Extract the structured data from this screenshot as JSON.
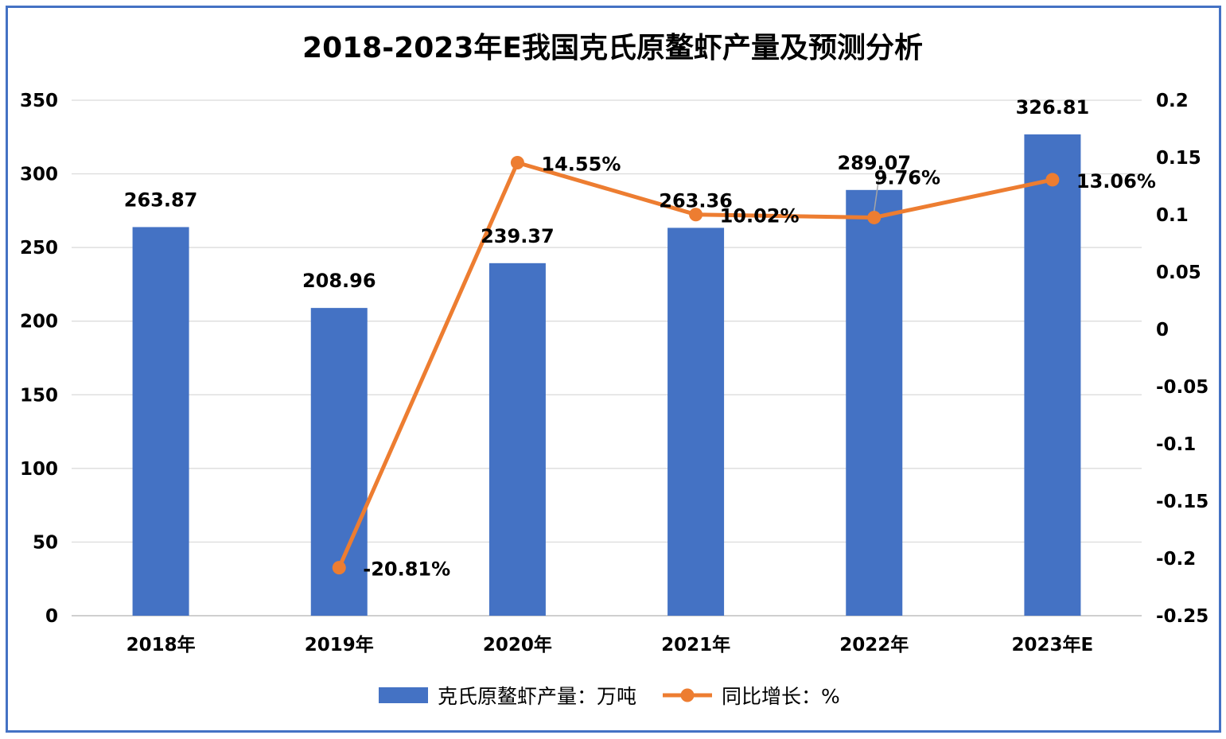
{
  "chart_data": {
    "type": "bar+line",
    "title": "2018-2023年E我国克氏原鳌虾产量及预测分析",
    "categories": [
      "2018年",
      "2019年",
      "2020年",
      "2021年",
      "2022年",
      "2023年E"
    ],
    "series": [
      {
        "name": "克氏原鳌虾产量：万吨",
        "type": "bar",
        "axis": "left",
        "color": "#4472c4",
        "values": [
          263.87,
          208.96,
          239.37,
          263.36,
          289.07,
          326.81
        ],
        "labels": [
          "263.87",
          "208.96",
          "239.37",
          "263.36",
          "289.07",
          "326.81"
        ]
      },
      {
        "name": "同比增长：%",
        "type": "line",
        "axis": "right",
        "color": "#ed7d31",
        "values": [
          null,
          -0.2081,
          0.1455,
          0.1002,
          0.0976,
          0.1306
        ],
        "labels": [
          null,
          "-20.81%",
          "14.55%",
          "10.02%",
          "9.76%",
          "13.06%"
        ]
      }
    ],
    "y_left": {
      "ylim": [
        0,
        350
      ],
      "ticks": [
        "0",
        "50",
        "100",
        "150",
        "200",
        "250",
        "300",
        "350"
      ]
    },
    "y_right": {
      "ylim": [
        -0.25,
        0.2
      ],
      "ticks": [
        "-0.25",
        "-0.2",
        "-0.15",
        "-0.1",
        "-0.05",
        "0",
        "0.05",
        "0.1",
        "0.15",
        "0.2"
      ]
    },
    "grid": true,
    "legend": "bottom"
  }
}
